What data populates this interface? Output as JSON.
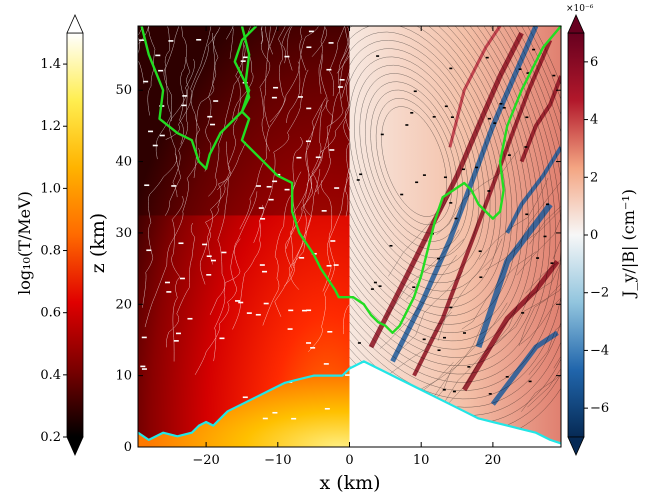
{
  "chart_data": {
    "type": "heatmap",
    "xlabel": "x (km)",
    "ylabel": "z (km)",
    "xlim": [
      -29.5,
      29.5
    ],
    "ylim": [
      0,
      59
    ],
    "x_ticks": [
      -20,
      -10,
      0,
      10,
      20
    ],
    "x_tick_labels": [
      "−20",
      "−10",
      "0",
      "10",
      "20"
    ],
    "y_ticks": [
      0,
      10,
      20,
      30,
      40,
      50
    ],
    "y_tick_labels": [
      "0",
      "10",
      "20",
      "30",
      "40",
      "50"
    ],
    "left_half": {
      "quantity": "log10(T/MeV)",
      "colormap": "hot",
      "streamline_color": "#ffffff"
    },
    "right_half": {
      "quantity": "J_y/|B| (cm^-1)",
      "colormap": "RdBu_r",
      "streamline_color": "#000000"
    },
    "left_colorbar": {
      "label": "log₁₀(T/MeV)",
      "range": [
        0.2,
        1.5
      ],
      "ticks": [
        0.2,
        0.4,
        0.6,
        0.8,
        1.0,
        1.2,
        1.4
      ],
      "tick_labels": [
        "0.2",
        "0.4",
        "0.6",
        "0.8",
        "1.0",
        "1.2",
        "1.4"
      ],
      "colors": [
        "#000000",
        "#7a0000",
        "#e00000",
        "#ff6a00",
        "#ffb300",
        "#ffee50",
        "#ffffff"
      ]
    },
    "right_colorbar": {
      "label": "J_y/|B| (cm⁻¹)",
      "multiplier": "×10⁻⁶",
      "range": [
        -7,
        7
      ],
      "ticks": [
        -6,
        -4,
        -2,
        0,
        2,
        4,
        6
      ],
      "tick_labels": [
        "−6",
        "−4",
        "−2",
        "0",
        "2",
        "4",
        "6"
      ],
      "colors": [
        "#062a55",
        "#2166ac",
        "#92c5de",
        "#f7f7f7",
        "#f4a582",
        "#b2182b",
        "#67001f"
      ]
    },
    "contours": [
      {
        "color": "#22dd22",
        "points": [
          [
            -29,
            59
          ],
          [
            -28,
            55
          ],
          [
            -26,
            50
          ],
          [
            -26.5,
            46
          ],
          [
            -24,
            44
          ],
          [
            -22,
            43
          ],
          [
            -21,
            40
          ],
          [
            -20,
            39
          ],
          [
            -19.5,
            41
          ],
          [
            -18,
            44
          ],
          [
            -16,
            46
          ],
          [
            -15,
            47
          ],
          [
            -14,
            50
          ],
          [
            -16,
            54
          ],
          [
            -15,
            57
          ],
          [
            -13,
            59
          ]
        ]
      },
      {
        "color": "#22dd22",
        "points": [
          [
            -15,
            59
          ],
          [
            -14,
            55
          ],
          [
            -14.5,
            51
          ],
          [
            -14,
            49
          ],
          [
            -15,
            47
          ],
          [
            -14,
            46
          ],
          [
            -15,
            43
          ],
          [
            -14,
            42
          ],
          [
            -12,
            40
          ],
          [
            -10,
            38
          ],
          [
            -8,
            37
          ],
          [
            -8,
            33
          ],
          [
            -7,
            30
          ],
          [
            -5,
            27
          ],
          [
            -4,
            25
          ],
          [
            -2,
            22
          ],
          [
            -1.5,
            21
          ],
          [
            0.5,
            21
          ],
          [
            2,
            20
          ],
          [
            3,
            18.5
          ],
          [
            4,
            17.5
          ],
          [
            5,
            17
          ],
          [
            6,
            16
          ],
          [
            7,
            17
          ],
          [
            8,
            19
          ],
          [
            9,
            21
          ],
          [
            10,
            24
          ],
          [
            11,
            28
          ],
          [
            12,
            32
          ],
          [
            13,
            35
          ],
          [
            14.5,
            36
          ],
          [
            16,
            37
          ],
          [
            17,
            36
          ],
          [
            18,
            34
          ],
          [
            19,
            33
          ],
          [
            20,
            32
          ],
          [
            21,
            33
          ],
          [
            21.5,
            36
          ],
          [
            21,
            40
          ],
          [
            22,
            45
          ],
          [
            24,
            50
          ],
          [
            26,
            54
          ],
          [
            27,
            56
          ],
          [
            29.5,
            59
          ]
        ]
      }
    ],
    "cyan_contour": {
      "color": "#22e6e6",
      "points": [
        [
          -29.5,
          2
        ],
        [
          -28,
          1
        ],
        [
          -26,
          2
        ],
        [
          -24,
          1.5
        ],
        [
          -22,
          2
        ],
        [
          -21,
          3
        ],
        [
          -20,
          3.5
        ],
        [
          -19,
          3
        ],
        [
          -18,
          4
        ],
        [
          -17,
          5
        ],
        [
          -15,
          6
        ],
        [
          -13,
          7
        ],
        [
          -11,
          8
        ],
        [
          -9,
          9
        ],
        [
          -7,
          9.5
        ],
        [
          -5,
          10
        ],
        [
          -3,
          10
        ],
        [
          -1,
          10
        ],
        [
          0,
          11
        ],
        [
          2,
          12
        ],
        [
          4,
          11
        ],
        [
          6,
          10
        ],
        [
          8,
          9
        ],
        [
          10,
          8
        ],
        [
          12,
          7
        ],
        [
          14,
          6
        ],
        [
          16,
          5
        ],
        [
          18,
          4
        ],
        [
          20,
          3.5
        ],
        [
          22,
          3
        ],
        [
          24,
          2.5
        ],
        [
          26,
          2
        ],
        [
          28,
          1
        ],
        [
          29.5,
          0.5
        ]
      ]
    }
  }
}
